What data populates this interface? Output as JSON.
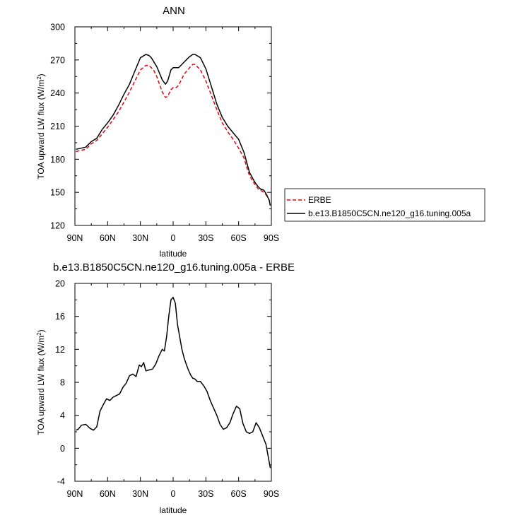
{
  "chart_data": [
    {
      "type": "line",
      "title": "ANN",
      "xlabel": "latitude",
      "ylabel": "TOA upward LW flux (W/m",
      "ylabel_sup": "2",
      "ylabel_tail": ")",
      "xlim": [
        90,
        -90
      ],
      "ylim": [
        120,
        300
      ],
      "x_ticks": [
        90,
        60,
        30,
        0,
        -30,
        -60,
        -90
      ],
      "x_tick_labels": [
        "90N",
        "60N",
        "30N",
        "0",
        "30S",
        "60S",
        "90S"
      ],
      "y_ticks": [
        120,
        150,
        180,
        210,
        240,
        270,
        300
      ],
      "y_tick_labels": [
        "120",
        "150",
        "180",
        "210",
        "240",
        "270",
        "300"
      ],
      "grid": false,
      "legend_position": "right",
      "series": [
        {
          "name": "ERBE",
          "color": "#e8000b",
          "dash": "dashed",
          "x": [
            89,
            80,
            75,
            70,
            65,
            60,
            55,
            50,
            45,
            40,
            35,
            30,
            25,
            22,
            18,
            15,
            10,
            7,
            5,
            2,
            0,
            -3,
            -5,
            -8,
            -10,
            -15,
            -18,
            -20,
            -25,
            -30,
            -35,
            -40,
            -45,
            -50,
            -55,
            -60,
            -65,
            -68,
            -70,
            -75,
            -78,
            -80,
            -83,
            -85,
            -88,
            -89
          ],
          "y": [
            187,
            189,
            194,
            197,
            203,
            209,
            216,
            223,
            232,
            241,
            251,
            261,
            265,
            265,
            261,
            255,
            241,
            236,
            237,
            243,
            245,
            245,
            247,
            253,
            257,
            263,
            266,
            266,
            261,
            251,
            238,
            225,
            213,
            205,
            198,
            190,
            181,
            171,
            165,
            157,
            153,
            152,
            150,
            148,
            143,
            140
          ]
        },
        {
          "name": "b.e13.B1850C5CN.ne120_g16.tuning.005a",
          "color": "#000000",
          "dash": "solid",
          "x": [
            89,
            80,
            75,
            70,
            65,
            60,
            55,
            50,
            45,
            40,
            35,
            30,
            25,
            22,
            20,
            15,
            10,
            7,
            5,
            2,
            0,
            -3,
            -5,
            -8,
            -10,
            -15,
            -18,
            -20,
            -25,
            -30,
            -35,
            -40,
            -45,
            -50,
            -55,
            -60,
            -65,
            -68,
            -70,
            -75,
            -78,
            -80,
            -83,
            -85,
            -88,
            -89
          ],
          "y": [
            189,
            191,
            196,
            199,
            207,
            213,
            220,
            229,
            239,
            248,
            260,
            272,
            275,
            274,
            272,
            264,
            252,
            248,
            251,
            261,
            263,
            263,
            263,
            266,
            268,
            273,
            275,
            275,
            272,
            262,
            246,
            230,
            218,
            210,
            204,
            198,
            186,
            175,
            168,
            159,
            155,
            153,
            152,
            149,
            143,
            138
          ]
        }
      ]
    },
    {
      "type": "line",
      "title": "b.e13.B1850C5CN.ne120_g16.tuning.005a - ERBE",
      "xlabel": "latitude",
      "ylabel": "TOA upward LW flux (W/m",
      "ylabel_sup": "2",
      "ylabel_tail": ")",
      "xlim": [
        90,
        -90
      ],
      "ylim": [
        -4,
        20
      ],
      "x_ticks": [
        90,
        60,
        30,
        0,
        -30,
        -60,
        -90
      ],
      "x_tick_labels": [
        "90N",
        "60N",
        "30N",
        "0",
        "30S",
        "60S",
        "90S"
      ],
      "y_ticks": [
        -4,
        0,
        4,
        8,
        12,
        16,
        20
      ],
      "y_tick_labels": [
        "-4",
        "0",
        "4",
        "8",
        "12",
        "16",
        "20"
      ],
      "grid": false,
      "series": [
        {
          "color": "#000000",
          "dash": "solid",
          "x": [
            89,
            87,
            84,
            80,
            76,
            73,
            70,
            67,
            64,
            61,
            58,
            55,
            52,
            49,
            46,
            43,
            40,
            37,
            34,
            31,
            29,
            27,
            25,
            22,
            19,
            16,
            13,
            10,
            8,
            6,
            4,
            2,
            0,
            -2,
            -4,
            -6,
            -8,
            -10,
            -12,
            -14,
            -16,
            -18,
            -20,
            -22,
            -25,
            -28,
            -31,
            -34,
            -37,
            -40,
            -43,
            -46,
            -49,
            -52,
            -55,
            -58,
            -61,
            -64,
            -67,
            -70,
            -73,
            -76,
            -79,
            -82,
            -85,
            -89
          ],
          "y": [
            2.2,
            2.3,
            2.8,
            2.9,
            2.4,
            2.2,
            2.6,
            4.5,
            5.3,
            6.0,
            5.8,
            6.2,
            6.4,
            6.6,
            7.4,
            7.9,
            8.8,
            9.0,
            8.7,
            10.1,
            9.9,
            10.4,
            9.4,
            9.5,
            9.6,
            10.2,
            11.2,
            12.0,
            11.8,
            13.5,
            16.0,
            18.0,
            18.3,
            17.6,
            15.0,
            13.5,
            12.0,
            11.0,
            10.2,
            9.5,
            8.9,
            8.5,
            8.4,
            8.1,
            8.1,
            7.6,
            6.9,
            5.8,
            4.9,
            4.0,
            2.9,
            2.3,
            2.5,
            3.1,
            4.2,
            5.1,
            4.8,
            3.0,
            2.0,
            1.8,
            2.0,
            3.1,
            2.5,
            1.5,
            0.5,
            -2.4
          ]
        }
      ]
    }
  ]
}
